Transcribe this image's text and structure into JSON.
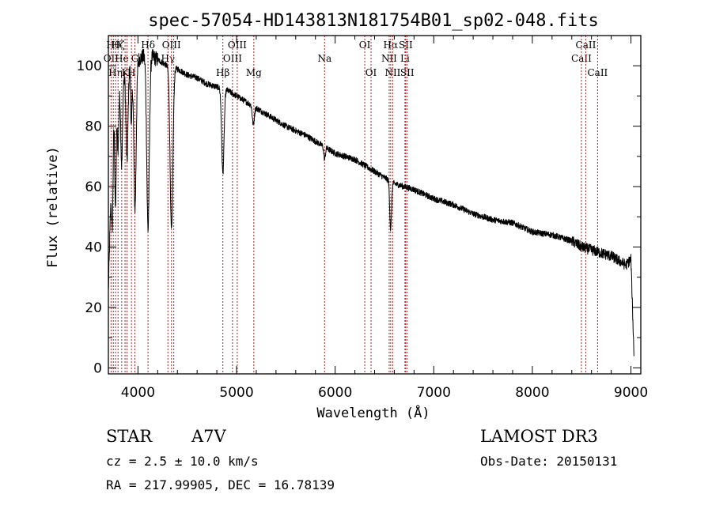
{
  "chart_data": {
    "type": "line",
    "title": "spec-57054-HD143813N181754B01_sp02-048.fits",
    "xlabel": "Wavelength (Å)",
    "ylabel": "Flux (relative)",
    "xlim": [
      3700,
      9100
    ],
    "ylim": [
      -2,
      110
    ],
    "x_ticks": [
      4000,
      5000,
      6000,
      7000,
      8000,
      9000
    ],
    "y_ticks": [
      0,
      20,
      40,
      60,
      80,
      100
    ],
    "grid": false,
    "series": [
      {
        "name": "Flux",
        "continuum": {
          "x": [
            3700,
            3740,
            3760,
            3800,
            3850,
            3900,
            3950,
            4000,
            4050,
            4100,
            4150,
            4200,
            4300,
            4400,
            4500,
            4600,
            4700,
            4800,
            4900,
            5000,
            5100,
            5200,
            5300,
            5500,
            5700,
            5900,
            6000,
            6100,
            6200,
            6300,
            6400,
            6500,
            6600,
            6700,
            6800,
            7000,
            7200,
            7400,
            7600,
            7800,
            8000,
            8200,
            8400,
            8500,
            8600,
            8700,
            8800,
            8900,
            8950,
            9000,
            9030
          ],
          "y": [
            25,
            75,
            85,
            93,
            96,
            99,
            100,
            102,
            103,
            104,
            103,
            102,
            100,
            99,
            97,
            96,
            94,
            93,
            92,
            90,
            88,
            86,
            84,
            80,
            77,
            73,
            71,
            70,
            69,
            67,
            65,
            63,
            61,
            60,
            59,
            56,
            54,
            51,
            49,
            48,
            45,
            44,
            42,
            40,
            39,
            38,
            37,
            35,
            34,
            36,
            5
          ]
        },
        "absorption_lines": [
          {
            "x": 3740,
            "depth": 28,
            "width": 7
          },
          {
            "x": 3772,
            "depth": 35,
            "width": 7
          },
          {
            "x": 3798,
            "depth": 20,
            "width": 8
          },
          {
            "x": 3835,
            "depth": 28,
            "width": 9
          },
          {
            "x": 3889,
            "depth": 30,
            "width": 10
          },
          {
            "x": 3933,
            "depth": 20,
            "width": 6
          },
          {
            "x": 3970,
            "depth": 48,
            "width": 12
          },
          {
            "x": 4102,
            "depth": 58,
            "width": 13
          },
          {
            "x": 4340,
            "depth": 54,
            "width": 14
          },
          {
            "x": 4861,
            "depth": 28,
            "width": 12
          },
          {
            "x": 5170,
            "depth": 6,
            "width": 10
          },
          {
            "x": 5893,
            "depth": 4,
            "width": 8
          },
          {
            "x": 6563,
            "depth": 16,
            "width": 9
          }
        ]
      }
    ],
    "line_markers": [
      {
        "x": 3727,
        "label": "OII",
        "row": 2
      },
      {
        "x": 3750,
        "label": "Hθ",
        "row": 1
      },
      {
        "x": 3772,
        "label": "Hη",
        "row": 3
      },
      {
        "x": 3798,
        "label": "Hζ",
        "row": 1
      },
      {
        "x": 3835,
        "label": "He",
        "row": 2
      },
      {
        "x": 3869,
        "label": "K",
        "row": 3
      },
      {
        "x": 3889,
        "label": "",
        "row": 0
      },
      {
        "x": 3934,
        "label": "H",
        "row": 3
      },
      {
        "x": 3969,
        "label": "G",
        "row": 2
      },
      {
        "x": 4102,
        "label": "Hδ",
        "row": 1
      },
      {
        "x": 4304,
        "label": "Hγ",
        "row": 2
      },
      {
        "x": 4340,
        "label": "OIII",
        "row": 1
      },
      {
        "x": 4363,
        "label": "",
        "row": 0
      },
      {
        "x": 4861,
        "label": "Hβ",
        "row": 3
      },
      {
        "x": 4959,
        "label": "OIII",
        "row": 2
      },
      {
        "x": 5007,
        "label": "OIII",
        "row": 1
      },
      {
        "x": 5175,
        "label": "Mg",
        "row": 3
      },
      {
        "x": 5893,
        "label": "Na",
        "row": 2
      },
      {
        "x": 6300,
        "label": "OI",
        "row": 1
      },
      {
        "x": 6364,
        "label": "OI",
        "row": 3
      },
      {
        "x": 6548,
        "label": "NII",
        "row": 2
      },
      {
        "x": 6563,
        "label": "Hα",
        "row": 1
      },
      {
        "x": 6584,
        "label": "NII",
        "row": 3
      },
      {
        "x": 6708,
        "label": "Li",
        "row": 2
      },
      {
        "x": 6716,
        "label": "SII",
        "row": 1
      },
      {
        "x": 6731,
        "label": "SII",
        "row": 3
      },
      {
        "x": 8498,
        "label": "CaII",
        "row": 2
      },
      {
        "x": 8542,
        "label": "CaII",
        "row": 1
      },
      {
        "x": 8662,
        "label": "CaII",
        "row": 3
      }
    ]
  },
  "info": {
    "object_class": "STAR",
    "subclass": "A7V",
    "survey": "LAMOST DR3",
    "cz": "cz = 2.5 ± 10.0 km/s",
    "obs_date": "Obs-Date: 20150131",
    "coords": "RA = 217.99905, DEC =  16.78139"
  },
  "colors": {
    "spectrum": "#000000",
    "marker": "#b22222",
    "axes": "#000000"
  }
}
